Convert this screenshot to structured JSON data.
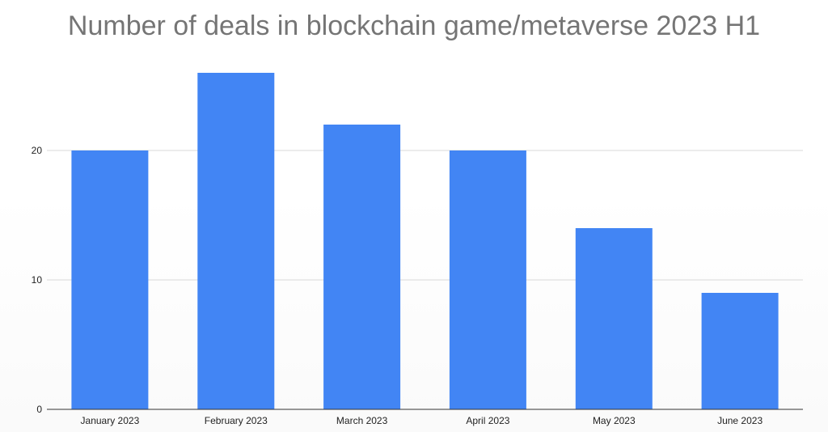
{
  "chart_data": {
    "type": "bar",
    "title": "Number of deals in blockchain game/metaverse 2023 H1",
    "xlabel": "",
    "ylabel": "",
    "categories": [
      "January 2023",
      "February 2023",
      "March 2023",
      "April 2023",
      "May 2023",
      "June 2023"
    ],
    "series": [
      {
        "values": [
          20,
          26,
          22,
          20,
          14,
          9
        ]
      }
    ],
    "yticks": [
      0,
      10,
      20
    ],
    "ylim": [
      0,
      28
    ],
    "grid": true,
    "legend": "none",
    "bar_color": "#4285f4",
    "grid_color": "#d9d9d9",
    "axis_color": "#333333"
  }
}
